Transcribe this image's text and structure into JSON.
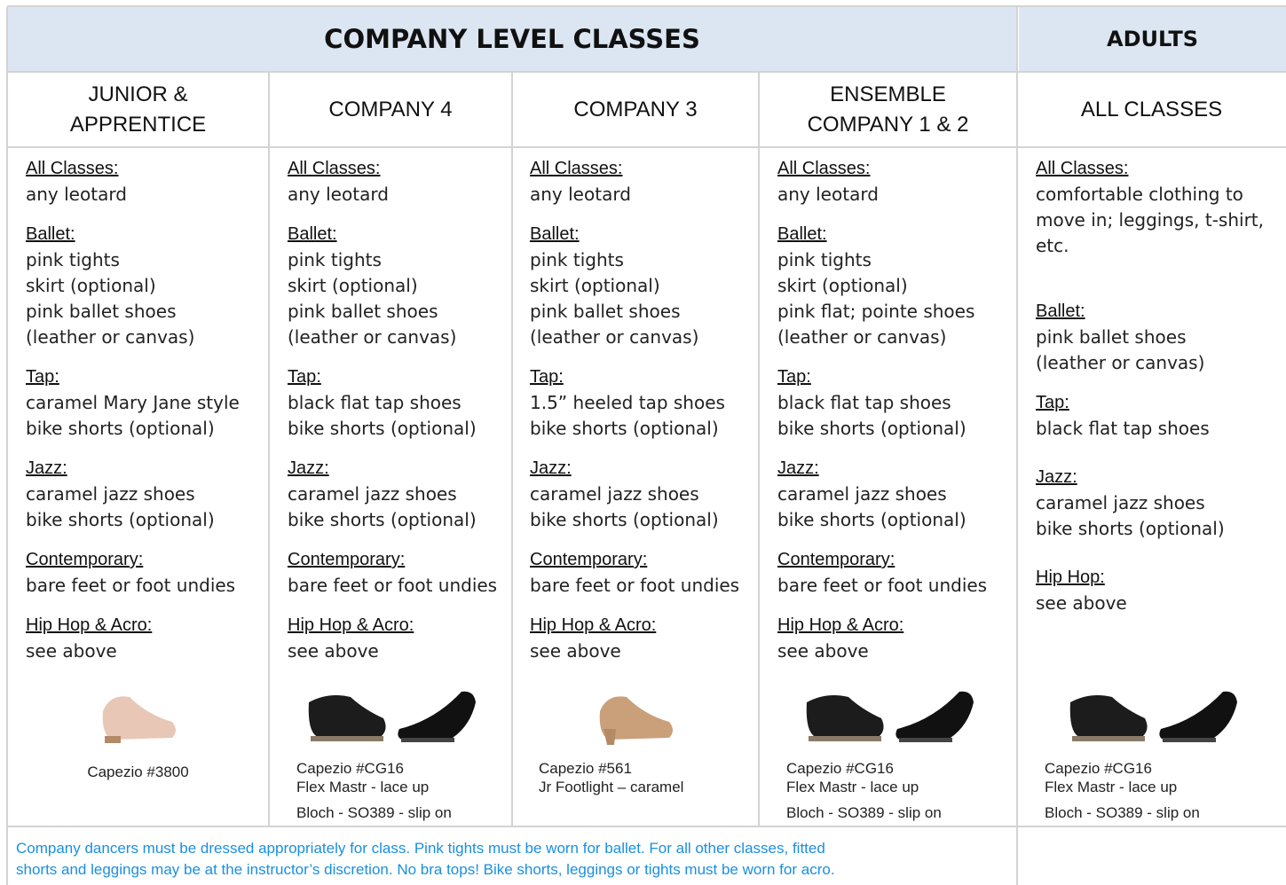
{
  "header": {
    "title": "COMPANY LEVEL CLASSES",
    "adults": "ADULTS"
  },
  "columns": [
    {
      "header": [
        "JUNIOR &",
        "APPRENTICE"
      ],
      "sections": [
        {
          "heading": "All Classes:",
          "lines": [
            "any leotard"
          ]
        },
        {
          "heading": "Ballet:",
          "lines": [
            "pink tights",
            "skirt (optional)",
            "pink ballet shoes",
            "(leather or canvas)"
          ]
        },
        {
          "heading": "Tap:",
          "lines": [
            "caramel Mary Jane style",
            "bike shorts (optional)"
          ]
        },
        {
          "heading": "Jazz:",
          "lines": [
            "caramel jazz shoes",
            "bike shorts (optional)"
          ]
        },
        {
          "heading": "Contemporary:",
          "lines": [
            "bare feet or foot undies"
          ]
        },
        {
          "heading": "Hip Hop & Acro:",
          "lines": [
            "see above"
          ]
        }
      ],
      "captions": [
        "Capezio #3800"
      ]
    },
    {
      "header": [
        "COMPANY 4"
      ],
      "sections": [
        {
          "heading": "All Classes:",
          "lines": [
            "any leotard"
          ]
        },
        {
          "heading": "Ballet:",
          "lines": [
            "pink tights",
            "skirt (optional)",
            "pink ballet shoes",
            "(leather or canvas)"
          ]
        },
        {
          "heading": "Tap:",
          "lines": [
            "black flat tap shoes",
            "bike shorts (optional)"
          ]
        },
        {
          "heading": "Jazz:",
          "lines": [
            "caramel jazz shoes",
            "bike shorts (optional)"
          ]
        },
        {
          "heading": "Contemporary:",
          "lines": [
            "bare feet or foot undies"
          ]
        },
        {
          "heading": "Hip Hop & Acro:",
          "lines": [
            "see above"
          ]
        }
      ],
      "captions": [
        "Capezio #CG16",
        "Flex Mastr  - lace up",
        "Bloch - SO389 - slip on"
      ]
    },
    {
      "header": [
        "COMPANY 3"
      ],
      "sections": [
        {
          "heading": "All Classes:",
          "lines": [
            "any leotard"
          ]
        },
        {
          "heading": "Ballet:",
          "lines": [
            "pink tights",
            "skirt (optional)",
            "pink ballet shoes",
            "(leather or canvas)"
          ]
        },
        {
          "heading": "Tap:",
          "lines": [
            "1.5” heeled tap shoes",
            "bike shorts (optional)"
          ]
        },
        {
          "heading": "Jazz:",
          "lines": [
            "caramel jazz shoes",
            "bike shorts (optional)"
          ]
        },
        {
          "heading": "Contemporary:",
          "lines": [
            "bare feet or foot undies"
          ]
        },
        {
          "heading": "Hip Hop & Acro:",
          "lines": [
            "see above"
          ]
        }
      ],
      "captions": [
        "Capezio #561",
        "Jr Footlight – caramel"
      ]
    },
    {
      "header": [
        "ENSEMBLE",
        "COMPANY 1 & 2"
      ],
      "sections": [
        {
          "heading": "All Classes:",
          "lines": [
            "any leotard"
          ]
        },
        {
          "heading": "Ballet:",
          "lines": [
            "pink tights",
            "skirt (optional)",
            "pink flat; pointe shoes",
            "(leather or canvas)"
          ]
        },
        {
          "heading": "Tap:",
          "lines": [
            "black flat tap shoes",
            "bike shorts (optional)"
          ]
        },
        {
          "heading": "Jazz:",
          "lines": [
            "caramel jazz shoes",
            "bike shorts (optional)"
          ]
        },
        {
          "heading": "Contemporary:",
          "lines": [
            "bare feet or foot undies"
          ]
        },
        {
          "heading": "Hip Hop & Acro:",
          "lines": [
            "see above"
          ]
        }
      ],
      "captions": [
        "Capezio #CG16",
        "Flex Mastr  - lace up",
        "Bloch - SO389 - slip on"
      ]
    },
    {
      "header": [
        "ALL CLASSES"
      ],
      "sections": [
        {
          "heading": "All Classes:",
          "lines": [
            "comfortable clothing to",
            "move in; leggings, t-shirt,",
            "etc."
          ]
        },
        {
          "heading": "Ballet:",
          "lines": [
            "pink ballet shoes",
            "(leather or canvas)"
          ]
        },
        {
          "heading": "Tap:",
          "lines": [
            "black flat tap shoes"
          ]
        },
        {
          "heading": "Jazz:",
          "lines": [
            "caramel jazz shoes",
            "bike shorts (optional)"
          ]
        },
        {
          "heading": "Hip Hop:",
          "lines": [
            "see above"
          ]
        }
      ],
      "captions": [
        "Capezio #CG16",
        "Flex Mastr  - lace up",
        "Bloch - SO389 - slip on"
      ]
    }
  ],
  "footer": [
    "Company dancers must be dressed appropriately for class. Pink tights must be worn for ballet. For  all other classes, fitted",
    "shorts and leggings may be at the instructor’s discretion.  No bra tops! Bike shorts, leggings or tights must be worn for acro."
  ]
}
